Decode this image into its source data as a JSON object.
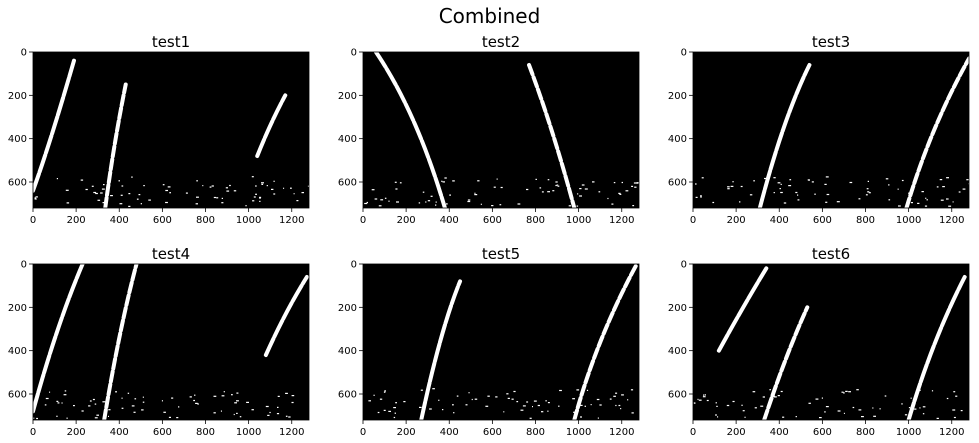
{
  "figure": {
    "title": "Combined"
  },
  "colors": {
    "background": "#ffffff",
    "panel": "#000000",
    "lane": "#ffffff",
    "axis": "#000000"
  },
  "chart_data": [
    {
      "type": "heatmap",
      "title": "test1",
      "xlim": [
        0,
        1280
      ],
      "ylim": [
        720,
        0
      ],
      "xticks": [
        0,
        200,
        400,
        600,
        800,
        1000,
        1200
      ],
      "yticks": [
        0,
        200,
        400,
        600
      ],
      "colormap": "binary (black background, white lane pixels)",
      "lane_strokes": [
        {
          "points": [
            [
              0,
              640
            ],
            [
              80,
              420
            ],
            [
              190,
              40
            ]
          ]
        },
        {
          "points": [
            [
              335,
              720
            ],
            [
              375,
              420
            ],
            [
              430,
              150
            ]
          ]
        },
        {
          "points": [
            [
              1040,
              480
            ],
            [
              1100,
              330
            ],
            [
              1170,
              200
            ]
          ]
        }
      ]
    },
    {
      "type": "heatmap",
      "title": "test2",
      "xlim": [
        0,
        1280
      ],
      "ylim": [
        720,
        0
      ],
      "xticks": [
        0,
        200,
        400,
        600,
        800,
        1000,
        1200
      ],
      "yticks": [
        0,
        200,
        400,
        600
      ],
      "colormap": "binary (black background, white lane pixels)",
      "lane_strokes": [
        {
          "points": [
            [
              60,
              0
            ],
            [
              250,
              280
            ],
            [
              380,
              720
            ]
          ]
        },
        {
          "points": [
            [
              770,
              60
            ],
            [
              880,
              350
            ],
            [
              980,
              720
            ]
          ]
        }
      ]
    },
    {
      "type": "heatmap",
      "title": "test3",
      "xlim": [
        0,
        1280
      ],
      "ylim": [
        720,
        0
      ],
      "xticks": [
        0,
        200,
        400,
        600,
        800,
        1000,
        1200
      ],
      "yticks": [
        0,
        200,
        400,
        600
      ],
      "colormap": "binary (black background, white lane pixels)",
      "lane_strokes": [
        {
          "points": [
            [
              310,
              720
            ],
            [
              420,
              300
            ],
            [
              540,
              60
            ]
          ]
        },
        {
          "points": [
            [
              990,
              720
            ],
            [
              1100,
              350
            ],
            [
              1280,
              30
            ]
          ]
        }
      ]
    },
    {
      "type": "heatmap",
      "title": "test4",
      "xlim": [
        0,
        1280
      ],
      "ylim": [
        720,
        0
      ],
      "xticks": [
        0,
        200,
        400,
        600,
        800,
        1000,
        1200
      ],
      "yticks": [
        0,
        200,
        400,
        600
      ],
      "colormap": "binary (black background, white lane pixels)",
      "lane_strokes": [
        {
          "points": [
            [
              0,
              680
            ],
            [
              110,
              280
            ],
            [
              230,
              0
            ]
          ]
        },
        {
          "points": [
            [
              330,
              720
            ],
            [
              400,
              300
            ],
            [
              480,
              0
            ]
          ]
        },
        {
          "points": [
            [
              1080,
              420
            ],
            [
              1170,
              220
            ],
            [
              1270,
              60
            ]
          ]
        }
      ]
    },
    {
      "type": "heatmap",
      "title": "test5",
      "xlim": [
        0,
        1280
      ],
      "ylim": [
        720,
        0
      ],
      "xticks": [
        0,
        200,
        400,
        600,
        800,
        1000,
        1200
      ],
      "yticks": [
        0,
        200,
        400,
        600
      ],
      "colormap": "binary (black background, white lane pixels)",
      "lane_strokes": [
        {
          "points": [
            [
              270,
              720
            ],
            [
              360,
              300
            ],
            [
              450,
              80
            ]
          ]
        },
        {
          "points": [
            [
              980,
              720
            ],
            [
              1080,
              350
            ],
            [
              1270,
              0
            ]
          ]
        }
      ]
    },
    {
      "type": "heatmap",
      "title": "test6",
      "xlim": [
        0,
        1280
      ],
      "ylim": [
        720,
        0
      ],
      "xticks": [
        0,
        200,
        400,
        600,
        800,
        1000,
        1200
      ],
      "yticks": [
        0,
        200,
        400,
        600
      ],
      "colormap": "binary (black background, white lane pixels)",
      "lane_strokes": [
        {
          "points": [
            [
              120,
              400
            ],
            [
              230,
              200
            ],
            [
              340,
              20
            ]
          ]
        },
        {
          "points": [
            [
              330,
              720
            ],
            [
              430,
              420
            ],
            [
              530,
              200
            ]
          ]
        },
        {
          "points": [
            [
              1000,
              720
            ],
            [
              1110,
              350
            ],
            [
              1260,
              60
            ]
          ]
        }
      ]
    }
  ]
}
